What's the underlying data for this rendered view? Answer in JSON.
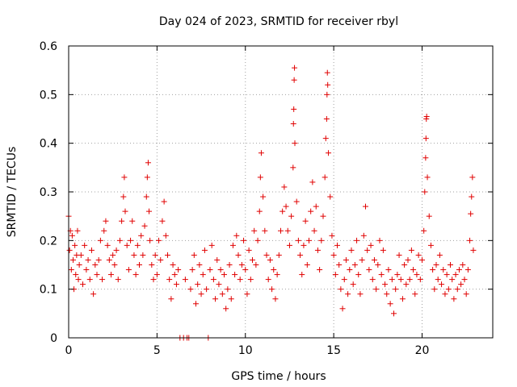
{
  "chart_data": {
    "type": "scatter",
    "title": "Day 024 of 2023, SRMTID for receiver rbyl",
    "xlabel": "GPS time / hours",
    "ylabel": "SRMTID / TECUs",
    "xlim": [
      0,
      24
    ],
    "ylim": [
      0,
      0.6
    ],
    "x_ticks": [
      0,
      5,
      10,
      15,
      20
    ],
    "x_tick_labels": [
      "0",
      "5",
      "10",
      "15",
      "20"
    ],
    "y_ticks": [
      0,
      0.1,
      0.2,
      0.3,
      0.4,
      0.5,
      0.6
    ],
    "y_tick_labels": [
      "0",
      "0.1",
      "0.2",
      "0.3",
      "0.4",
      "0.5",
      "0.6"
    ],
    "grid": true,
    "marker": "+",
    "color": "#e00000",
    "series": [
      {
        "name": "SRMTID",
        "points": [
          [
            0.0,
            0.25
          ],
          [
            0.05,
            0.18
          ],
          [
            0.1,
            0.22
          ],
          [
            0.15,
            0.14
          ],
          [
            0.2,
            0.21
          ],
          [
            0.25,
            0.16
          ],
          [
            0.3,
            0.1
          ],
          [
            0.35,
            0.19
          ],
          [
            0.4,
            0.13
          ],
          [
            0.45,
            0.17
          ],
          [
            0.5,
            0.22
          ],
          [
            0.55,
            0.12
          ],
          [
            0.6,
            0.15
          ],
          [
            0.7,
            0.17
          ],
          [
            0.8,
            0.11
          ],
          [
            0.9,
            0.19
          ],
          [
            1.0,
            0.14
          ],
          [
            1.1,
            0.16
          ],
          [
            1.2,
            0.12
          ],
          [
            1.3,
            0.18
          ],
          [
            1.4,
            0.09
          ],
          [
            1.5,
            0.15
          ],
          [
            1.6,
            0.13
          ],
          [
            1.7,
            0.16
          ],
          [
            1.8,
            0.2
          ],
          [
            1.9,
            0.12
          ],
          [
            2.0,
            0.22
          ],
          [
            2.1,
            0.24
          ],
          [
            2.2,
            0.19
          ],
          [
            2.3,
            0.16
          ],
          [
            2.4,
            0.13
          ],
          [
            2.5,
            0.17
          ],
          [
            2.6,
            0.15
          ],
          [
            2.7,
            0.18
          ],
          [
            2.8,
            0.12
          ],
          [
            2.9,
            0.2
          ],
          [
            3.0,
            0.24
          ],
          [
            3.1,
            0.29
          ],
          [
            3.15,
            0.33
          ],
          [
            3.2,
            0.26
          ],
          [
            3.3,
            0.19
          ],
          [
            3.4,
            0.14
          ],
          [
            3.5,
            0.2
          ],
          [
            3.6,
            0.24
          ],
          [
            3.7,
            0.17
          ],
          [
            3.8,
            0.13
          ],
          [
            3.9,
            0.19
          ],
          [
            4.0,
            0.15
          ],
          [
            4.1,
            0.21
          ],
          [
            4.2,
            0.17
          ],
          [
            4.3,
            0.23
          ],
          [
            4.4,
            0.29
          ],
          [
            4.45,
            0.33
          ],
          [
            4.5,
            0.36
          ],
          [
            4.55,
            0.26
          ],
          [
            4.6,
            0.2
          ],
          [
            4.7,
            0.15
          ],
          [
            4.8,
            0.12
          ],
          [
            4.9,
            0.17
          ],
          [
            5.0,
            0.13
          ],
          [
            5.1,
            0.2
          ],
          [
            5.2,
            0.16
          ],
          [
            5.3,
            0.24
          ],
          [
            5.4,
            0.28
          ],
          [
            5.5,
            0.21
          ],
          [
            5.6,
            0.17
          ],
          [
            5.7,
            0.12
          ],
          [
            5.8,
            0.08
          ],
          [
            5.9,
            0.15
          ],
          [
            6.0,
            0.13
          ],
          [
            6.1,
            0.11
          ],
          [
            6.2,
            0.14
          ],
          [
            6.3,
            0.0
          ],
          [
            6.5,
            0.0
          ],
          [
            6.6,
            0.12
          ],
          [
            6.7,
            0.0
          ],
          [
            6.8,
            0.0
          ],
          [
            6.9,
            0.1
          ],
          [
            7.0,
            0.14
          ],
          [
            7.1,
            0.17
          ],
          [
            7.2,
            0.07
          ],
          [
            7.3,
            0.11
          ],
          [
            7.4,
            0.15
          ],
          [
            7.5,
            0.09
          ],
          [
            7.6,
            0.13
          ],
          [
            7.7,
            0.18
          ],
          [
            7.8,
            0.1
          ],
          [
            7.9,
            0.0
          ],
          [
            8.0,
            0.14
          ],
          [
            8.1,
            0.19
          ],
          [
            8.2,
            0.12
          ],
          [
            8.3,
            0.08
          ],
          [
            8.4,
            0.16
          ],
          [
            8.5,
            0.11
          ],
          [
            8.6,
            0.14
          ],
          [
            8.7,
            0.09
          ],
          [
            8.8,
            0.13
          ],
          [
            8.9,
            0.06
          ],
          [
            9.0,
            0.1
          ],
          [
            9.1,
            0.15
          ],
          [
            9.2,
            0.08
          ],
          [
            9.3,
            0.19
          ],
          [
            9.4,
            0.13
          ],
          [
            9.5,
            0.21
          ],
          [
            9.6,
            0.17
          ],
          [
            9.7,
            0.12
          ],
          [
            9.8,
            0.15
          ],
          [
            9.9,
            0.2
          ],
          [
            10.0,
            0.14
          ],
          [
            10.1,
            0.09
          ],
          [
            10.2,
            0.18
          ],
          [
            10.3,
            0.12
          ],
          [
            10.4,
            0.16
          ],
          [
            10.5,
            0.22
          ],
          [
            10.6,
            0.15
          ],
          [
            10.7,
            0.2
          ],
          [
            10.8,
            0.26
          ],
          [
            10.85,
            0.33
          ],
          [
            10.9,
            0.38
          ],
          [
            11.0,
            0.29
          ],
          [
            11.1,
            0.22
          ],
          [
            11.2,
            0.17
          ],
          [
            11.3,
            0.12
          ],
          [
            11.4,
            0.16
          ],
          [
            11.5,
            0.1
          ],
          [
            11.6,
            0.14
          ],
          [
            11.7,
            0.08
          ],
          [
            11.8,
            0.13
          ],
          [
            11.9,
            0.17
          ],
          [
            12.0,
            0.22
          ],
          [
            12.1,
            0.26
          ],
          [
            12.2,
            0.31
          ],
          [
            12.3,
            0.27
          ],
          [
            12.4,
            0.22
          ],
          [
            12.5,
            0.19
          ],
          [
            12.6,
            0.25
          ],
          [
            12.7,
            0.35
          ],
          [
            12.72,
            0.44
          ],
          [
            12.74,
            0.47
          ],
          [
            12.76,
            0.53
          ],
          [
            12.78,
            0.555
          ],
          [
            12.8,
            0.4
          ],
          [
            12.9,
            0.28
          ],
          [
            13.0,
            0.2
          ],
          [
            13.1,
            0.17
          ],
          [
            13.2,
            0.13
          ],
          [
            13.3,
            0.19
          ],
          [
            13.4,
            0.24
          ],
          [
            13.5,
            0.15
          ],
          [
            13.6,
            0.2
          ],
          [
            13.7,
            0.26
          ],
          [
            13.8,
            0.32
          ],
          [
            13.9,
            0.22
          ],
          [
            14.0,
            0.27
          ],
          [
            14.1,
            0.18
          ],
          [
            14.2,
            0.14
          ],
          [
            14.3,
            0.2
          ],
          [
            14.4,
            0.25
          ],
          [
            14.5,
            0.33
          ],
          [
            14.55,
            0.41
          ],
          [
            14.6,
            0.45
          ],
          [
            14.62,
            0.5
          ],
          [
            14.64,
            0.545
          ],
          [
            14.66,
            0.52
          ],
          [
            14.7,
            0.38
          ],
          [
            14.8,
            0.29
          ],
          [
            14.9,
            0.21
          ],
          [
            15.0,
            0.17
          ],
          [
            15.1,
            0.13
          ],
          [
            15.2,
            0.19
          ],
          [
            15.3,
            0.15
          ],
          [
            15.4,
            0.1
          ],
          [
            15.5,
            0.06
          ],
          [
            15.6,
            0.12
          ],
          [
            15.7,
            0.16
          ],
          [
            15.8,
            0.09
          ],
          [
            15.9,
            0.14
          ],
          [
            16.0,
            0.18
          ],
          [
            16.1,
            0.11
          ],
          [
            16.2,
            0.15
          ],
          [
            16.3,
            0.2
          ],
          [
            16.4,
            0.13
          ],
          [
            16.5,
            0.09
          ],
          [
            16.6,
            0.16
          ],
          [
            16.7,
            0.21
          ],
          [
            16.8,
            0.27
          ],
          [
            16.9,
            0.18
          ],
          [
            17.0,
            0.14
          ],
          [
            17.1,
            0.19
          ],
          [
            17.2,
            0.12
          ],
          [
            17.3,
            0.16
          ],
          [
            17.4,
            0.1
          ],
          [
            17.5,
            0.15
          ],
          [
            17.6,
            0.2
          ],
          [
            17.7,
            0.13
          ],
          [
            17.8,
            0.18
          ],
          [
            17.9,
            0.11
          ],
          [
            18.0,
            0.09
          ],
          [
            18.1,
            0.14
          ],
          [
            18.2,
            0.07
          ],
          [
            18.3,
            0.12
          ],
          [
            18.4,
            0.05
          ],
          [
            18.5,
            0.1
          ],
          [
            18.6,
            0.13
          ],
          [
            18.7,
            0.17
          ],
          [
            18.8,
            0.12
          ],
          [
            18.9,
            0.08
          ],
          [
            19.0,
            0.15
          ],
          [
            19.1,
            0.11
          ],
          [
            19.2,
            0.16
          ],
          [
            19.3,
            0.12
          ],
          [
            19.4,
            0.18
          ],
          [
            19.5,
            0.14
          ],
          [
            19.6,
            0.09
          ],
          [
            19.7,
            0.13
          ],
          [
            19.8,
            0.17
          ],
          [
            19.9,
            0.12
          ],
          [
            20.0,
            0.16
          ],
          [
            20.1,
            0.22
          ],
          [
            20.15,
            0.3
          ],
          [
            20.2,
            0.37
          ],
          [
            20.22,
            0.41
          ],
          [
            20.24,
            0.45
          ],
          [
            20.26,
            0.455
          ],
          [
            20.3,
            0.33
          ],
          [
            20.4,
            0.25
          ],
          [
            20.5,
            0.19
          ],
          [
            20.6,
            0.14
          ],
          [
            20.7,
            0.1
          ],
          [
            20.8,
            0.15
          ],
          [
            20.9,
            0.12
          ],
          [
            21.0,
            0.17
          ],
          [
            21.1,
            0.11
          ],
          [
            21.2,
            0.14
          ],
          [
            21.3,
            0.09
          ],
          [
            21.4,
            0.13
          ],
          [
            21.5,
            0.1
          ],
          [
            21.6,
            0.15
          ],
          [
            21.7,
            0.12
          ],
          [
            21.8,
            0.08
          ],
          [
            21.9,
            0.13
          ],
          [
            22.0,
            0.1
          ],
          [
            22.1,
            0.14
          ],
          [
            22.2,
            0.11
          ],
          [
            22.3,
            0.15
          ],
          [
            22.4,
            0.12
          ],
          [
            22.5,
            0.09
          ],
          [
            22.6,
            0.14
          ],
          [
            22.7,
            0.2
          ],
          [
            22.75,
            0.255
          ],
          [
            22.8,
            0.29
          ],
          [
            22.85,
            0.33
          ],
          [
            22.9,
            0.18
          ]
        ]
      }
    ]
  }
}
